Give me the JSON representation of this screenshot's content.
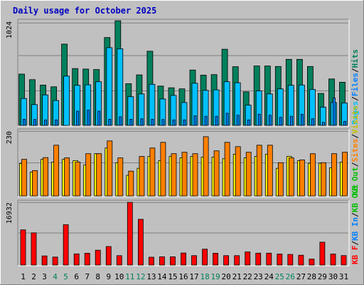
{
  "title": "Daily usage for October 2025",
  "colors": {
    "background": "#c0c0c0",
    "border_light": "#ffffff",
    "border_dark": "#808080",
    "title": "#0000c0",
    "grid": "#808080",
    "hits": "#00805c",
    "files": "#00c0ff",
    "pages": "#00c0ff",
    "sites": "#ff8000",
    "visits": "#ffff00",
    "kbin": "#0080ff",
    "kbout": "#00c000",
    "kbf": "#ff0000",
    "weekend_label": "#00805c",
    "weekday_label": "#000000",
    "pages_label": "#00c0ff",
    "files_label": "#0080ff",
    "hits_label": "#00805c",
    "sites_label": "#ff8000",
    "visits_label": "#c0c000",
    "kbin_label": "#0080ff",
    "kbout_label": "#00c000",
    "kbf_label": "#ff0000",
    "sep_label": "#000000"
  },
  "chart_data": [
    {
      "type": "bar",
      "panel": "hits-files-pages",
      "categories": [
        "1",
        "2",
        "3",
        "4",
        "5",
        "6",
        "7",
        "8",
        "9",
        "10",
        "11",
        "12",
        "13",
        "14",
        "15",
        "16",
        "17",
        "18",
        "19",
        "20",
        "21",
        "22",
        "23",
        "24",
        "25",
        "26",
        "27",
        "28",
        "29",
        "30",
        "31"
      ],
      "weekend_days": [
        "4",
        "5",
        "11",
        "12",
        "18",
        "19",
        "25",
        "26"
      ],
      "ymax_label": "1024",
      "ylim": [
        0,
        1024
      ],
      "legend": [
        {
          "text": "Pages",
          "color_key": "pages_label"
        },
        {
          "text": "/",
          "color_key": "sep_label"
        },
        {
          "text": "Files",
          "color_key": "files_label"
        },
        {
          "text": "/",
          "color_key": "sep_label"
        },
        {
          "text": "Hits",
          "color_key": "hits_label"
        }
      ],
      "series": [
        {
          "name": "Hits",
          "values": [
            505,
            450,
            397,
            380,
            800,
            560,
            555,
            550,
            865,
            1030,
            410,
            497,
            730,
            387,
            370,
            360,
            545,
            495,
            500,
            750,
            578,
            330,
            585,
            585,
            580,
            650,
            650,
            580,
            315,
            457,
            425
          ]
        },
        {
          "name": "Files",
          "values": [
            265,
            205,
            300,
            245,
            485,
            395,
            400,
            430,
            765,
            755,
            283,
            310,
            405,
            260,
            295,
            225,
            415,
            345,
            350,
            430,
            420,
            200,
            340,
            310,
            360,
            395,
            398,
            355,
            180,
            225,
            220
          ]
        },
        {
          "name": "Pages",
          "values": [
            60,
            58,
            55,
            55,
            0,
            140,
            150,
            140,
            60,
            85,
            60,
            65,
            60,
            58,
            55,
            55,
            95,
            90,
            90,
            120,
            100,
            55,
            110,
            100,
            80,
            90,
            110,
            65,
            30,
            270,
            40
          ]
        }
      ]
    },
    {
      "type": "bar",
      "panel": "visits-sites",
      "categories": [
        "1",
        "2",
        "3",
        "4",
        "5",
        "6",
        "7",
        "8",
        "9",
        "10",
        "11",
        "12",
        "13",
        "14",
        "15",
        "16",
        "17",
        "18",
        "19",
        "20",
        "21",
        "22",
        "23",
        "24",
        "25",
        "26",
        "27",
        "28",
        "29",
        "30",
        "31"
      ],
      "ymax_label": "230",
      "ylim": [
        0,
        230
      ],
      "legend": [
        {
          "text": "KB Out",
          "color_key": "kbout_label"
        },
        {
          "text": "/",
          "color_key": "sep_label"
        },
        {
          "text": "Sites",
          "color_key": "sites_label"
        },
        {
          "text": "/",
          "color_key": "sep_label"
        },
        {
          "text": "Visits",
          "color_key": "visits_label"
        }
      ],
      "series": [
        {
          "name": "Visits",
          "values": [
            115,
            85,
            130,
            120,
            130,
            125,
            110,
            150,
            170,
            118,
            73,
            98,
            140,
            125,
            140,
            135,
            140,
            138,
            138,
            132,
            148,
            135,
            140,
            148,
            98,
            140,
            125,
            116,
            116,
            100,
            120
          ]
        },
        {
          "name": "Sites",
          "values": [
            130,
            90,
            136,
            180,
            135,
            120,
            150,
            150,
            195,
            135,
            88,
            140,
            170,
            190,
            150,
            155,
            150,
            210,
            160,
            190,
            175,
            155,
            180,
            180,
            118,
            135,
            128,
            150,
            118,
            150,
            155
          ]
        }
      ]
    },
    {
      "type": "bar",
      "panel": "kbytes",
      "categories": [
        "1",
        "2",
        "3",
        "4",
        "5",
        "6",
        "7",
        "8",
        "9",
        "10",
        "11",
        "12",
        "13",
        "14",
        "15",
        "16",
        "17",
        "18",
        "19",
        "20",
        "21",
        "22",
        "23",
        "24",
        "25",
        "26",
        "27",
        "28",
        "29",
        "30",
        "31"
      ],
      "ymax_label": "16932",
      "ylim": [
        0,
        16932
      ],
      "legend": [
        {
          "text": "KB F",
          "color_key": "kbf_label"
        },
        {
          "text": "/",
          "color_key": "sep_label"
        },
        {
          "text": "KB In",
          "color_key": "kbin_label"
        },
        {
          "text": "/",
          "color_key": "sep_label"
        },
        {
          "text": "KB Out",
          "color_key": "kbout_label"
        }
      ],
      "series": [
        {
          "name": "KB F",
          "values": [
            9500,
            8700,
            2470,
            2150,
            10900,
            3020,
            3200,
            4010,
            5010,
            2540,
            16930,
            12350,
            2120,
            2240,
            2240,
            3250,
            2540,
            4300,
            3200,
            2540,
            2540,
            3550,
            3220,
            3220,
            2980,
            2870,
            2660,
            1610,
            6180,
            2980,
            2560
          ]
        }
      ]
    }
  ]
}
